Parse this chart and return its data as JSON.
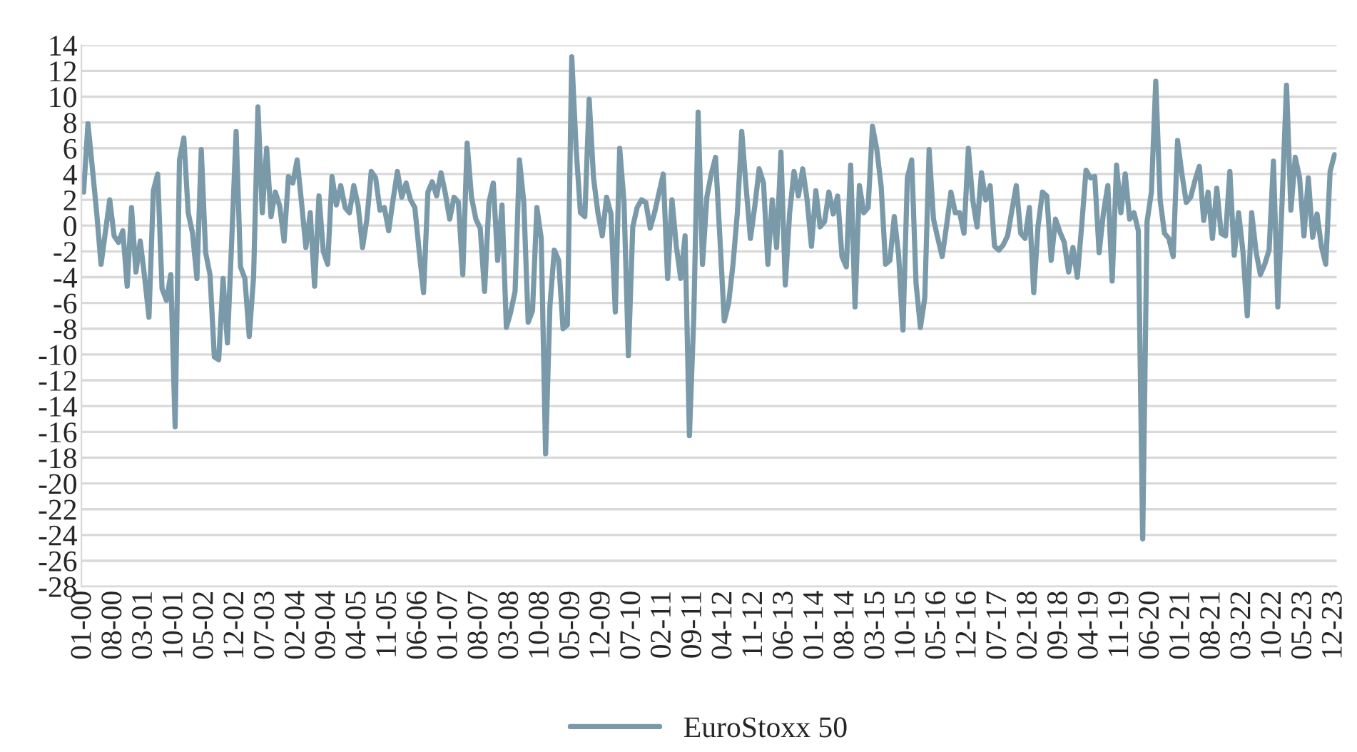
{
  "chart_data": {
    "type": "line",
    "categories": [
      "01-00",
      null,
      null,
      null,
      null,
      null,
      null,
      "08-00",
      null,
      null,
      null,
      null,
      null,
      null,
      "03-01",
      null,
      null,
      null,
      null,
      null,
      null,
      "10-01",
      null,
      null,
      null,
      null,
      null,
      null,
      "05-02",
      null,
      null,
      null,
      null,
      null,
      null,
      "12-02",
      null,
      null,
      null,
      null,
      null,
      null,
      "07-03",
      null,
      null,
      null,
      null,
      null,
      null,
      "02-04",
      null,
      null,
      null,
      null,
      null,
      null,
      "09-04",
      null,
      null,
      null,
      null,
      null,
      null,
      "04-05",
      null,
      null,
      null,
      null,
      null,
      null,
      "11-05",
      null,
      null,
      null,
      null,
      null,
      null,
      "06-06",
      null,
      null,
      null,
      null,
      null,
      null,
      "01-07",
      null,
      null,
      null,
      null,
      null,
      null,
      "08-07",
      null,
      null,
      null,
      null,
      null,
      null,
      "03-08",
      null,
      null,
      null,
      null,
      null,
      null,
      "10-08",
      null,
      null,
      null,
      null,
      null,
      null,
      "05-09",
      null,
      null,
      null,
      null,
      null,
      null,
      "12-09",
      null,
      null,
      null,
      null,
      null,
      null,
      "07-10",
      null,
      null,
      null,
      null,
      null,
      null,
      "02-11",
      null,
      null,
      null,
      null,
      null,
      null,
      "09-11",
      null,
      null,
      null,
      null,
      null,
      null,
      "04-12",
      null,
      null,
      null,
      null,
      null,
      null,
      "11-12",
      null,
      null,
      null,
      null,
      null,
      null,
      "06-13",
      null,
      null,
      null,
      null,
      null,
      null,
      "01-14",
      null,
      null,
      null,
      null,
      null,
      null,
      "08-14",
      null,
      null,
      null,
      null,
      null,
      null,
      "03-15",
      null,
      null,
      null,
      null,
      null,
      null,
      "10-15",
      null,
      null,
      null,
      null,
      null,
      null,
      "05-16",
      null,
      null,
      null,
      null,
      null,
      null,
      "12-16",
      null,
      null,
      null,
      null,
      null,
      null,
      "07-17",
      null,
      null,
      null,
      null,
      null,
      null,
      "02-18",
      null,
      null,
      null,
      null,
      null,
      null,
      "09-18",
      null,
      null,
      null,
      null,
      null,
      null,
      "04-19",
      null,
      null,
      null,
      null,
      null,
      null,
      "11-19",
      null,
      null,
      null,
      null,
      null,
      null,
      "06-20",
      null,
      null,
      null,
      null,
      null,
      null,
      "01-21",
      null,
      null,
      null,
      null,
      null,
      null,
      "08-21",
      null,
      null,
      null,
      null,
      null,
      null,
      "03-22",
      null,
      null,
      null,
      null,
      null,
      null,
      "10-22",
      null,
      null,
      null,
      null,
      null,
      null,
      "05-23",
      null,
      null,
      null,
      null,
      null,
      null,
      "12-23"
    ],
    "series": [
      {
        "name": "EuroStoxx 50",
        "color": "#7a9aaa",
        "values": [
          2.6,
          7.9,
          4.5,
          1,
          -3,
          -0.5,
          2,
          -0.8,
          -1.3,
          -0.4,
          -4.7,
          1.4,
          -3.6,
          -1.2,
          -4,
          -7.1,
          2.7,
          4,
          -4.9,
          -5.8,
          -3.8,
          -15.6,
          5.1,
          6.8,
          1,
          -0.6,
          -4.1,
          5.9,
          -2.1,
          -3.8,
          -10.2,
          -10.4,
          -4.1,
          -9.1,
          -1,
          7.3,
          -3.2,
          -4.1,
          -8.6,
          -4,
          9.2,
          1,
          6,
          0.7,
          2.6,
          1.5,
          -1.2,
          3.8,
          3.3,
          5.1,
          1.8,
          -1.7,
          1,
          -4.7,
          2.3,
          -2,
          -3,
          3.8,
          1.6,
          3.1,
          1.4,
          1,
          3.1,
          1.5,
          -1.7,
          0.5,
          4.2,
          3.7,
          1.2,
          1.4,
          -0.4,
          2,
          4.2,
          2.2,
          3.3,
          2,
          1.4,
          -2,
          -5.2,
          2.6,
          3.4,
          2.3,
          4.1,
          2.5,
          0.5,
          2.2,
          1.8,
          -3.8,
          6.4,
          2.2,
          0.5,
          -0.2,
          -5.1,
          1.8,
          3.3,
          -2.7,
          1.6,
          -7.9,
          -6.7,
          -5.1,
          5.1,
          1.8,
          -7.5,
          -6.6,
          1.4,
          -1,
          -17.7,
          -6.2,
          -1.9,
          -2.7,
          -8,
          -7.7,
          13.1,
          6,
          1,
          0.7,
          9.8,
          3.7,
          1,
          -0.8,
          2.2,
          0.9,
          -6.7,
          6,
          1.8,
          -10.1,
          -0.1,
          1.4,
          2,
          1.8,
          -0.2,
          1,
          2.5,
          4,
          -4.1,
          2,
          -1.6,
          -4.1,
          -0.8,
          -16.3,
          -7.1,
          8.8,
          -3,
          2.2,
          4,
          5.3,
          -1,
          -7.4,
          -6,
          -3,
          1,
          7.3,
          3,
          -1,
          1.5,
          4.4,
          3.3,
          -3,
          2,
          -1.7,
          5.7,
          -4.6,
          1,
          4.2,
          2.3,
          4.4,
          2,
          -1.6,
          2.7,
          -0.1,
          0.3,
          2.6,
          0.9,
          2.3,
          -2.4,
          -3.2,
          4.7,
          -6.3,
          3.1,
          1,
          1.4,
          7.7,
          5.9,
          3,
          -3,
          -2.7,
          0.7,
          -2.3,
          -8.1,
          3.7,
          5.1,
          -4.5,
          -7.9,
          -5.6,
          5.9,
          0.5,
          -1,
          -2.4,
          0,
          2.6,
          1,
          1,
          -0.6,
          6,
          2,
          -0.1,
          4.1,
          2,
          3.1,
          -1.6,
          -1.9,
          -1.5,
          -0.8,
          1.2,
          3.1,
          -0.6,
          -1,
          1.4,
          -5.2,
          0,
          2.6,
          2.3,
          -2.7,
          0.5,
          -0.5,
          -1.3,
          -3.6,
          -1.7,
          -4,
          0,
          4.3,
          3.7,
          3.8,
          -2.1,
          1,
          3.1,
          -4.3,
          4.7,
          1,
          4,
          0.5,
          1,
          -0.4,
          -24.3,
          0.3,
          2.6,
          11.2,
          2,
          -0.6,
          -1,
          -2.4,
          6.6,
          4,
          1.8,
          2.2,
          3.5,
          4.6,
          0.4,
          2.6,
          -1,
          2.9,
          -0.6,
          -0.8,
          4.2,
          -2.3,
          1,
          -2,
          -7,
          1,
          -2,
          -3.8,
          -3,
          -1.9,
          5,
          -6.3,
          2,
          10.9,
          1.2,
          5.3,
          3.7,
          -0.8,
          3.7,
          -0.9,
          0.9,
          -1.6,
          -3,
          4.2,
          5.5
        ]
      }
    ],
    "ylim": [
      -28,
      14
    ],
    "yticks": [
      -28,
      -26,
      -24,
      -22,
      -20,
      -18,
      -16,
      -14,
      -12,
      -10,
      -8,
      -6,
      -4,
      -2,
      0,
      2,
      4,
      6,
      8,
      10,
      12,
      14
    ],
    "grid": "y",
    "legend": "bottom",
    "marker": "none",
    "line_style": "solid"
  }
}
